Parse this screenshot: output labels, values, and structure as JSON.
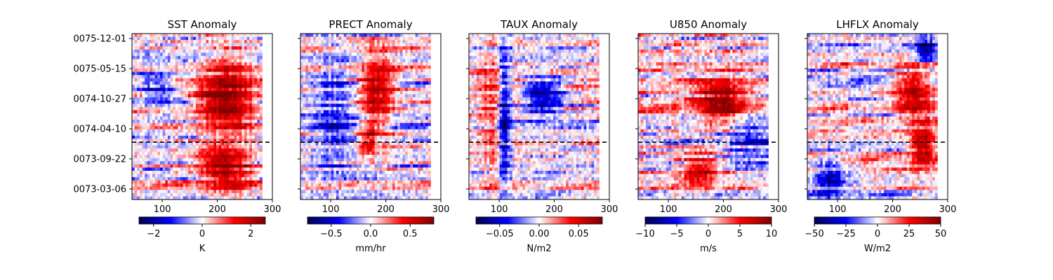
{
  "chart_data": [
    {
      "type": "heatmap",
      "title": "SST Anomaly",
      "x_ticks": [
        100,
        200,
        300
      ],
      "xlim": [
        45,
        300
      ],
      "y_ticks": [
        "0075-12-01",
        "0075-05-15",
        "0074-10-27",
        "0074-04-10",
        "0073-09-22",
        "0073-03-06"
      ],
      "colorbar": {
        "label": "K",
        "ticks": [
          "−2",
          "0",
          "2"
        ],
        "range": [
          -2.6,
          2.6
        ],
        "colormap": "seismic"
      },
      "warm_regions": [
        {
          "x": [
            160,
            275
          ],
          "y": [
            0.15,
            0.6
          ],
          "strength": 1.0
        },
        {
          "x": [
            160,
            270
          ],
          "y": [
            0.66,
            0.95
          ],
          "strength": 0.9
        }
      ],
      "cool_regions": [
        {
          "x": [
            55,
            130
          ],
          "y": [
            0.2,
            0.45
          ],
          "strength": 0.4
        }
      ],
      "dashed_line_fraction": 0.655
    },
    {
      "type": "heatmap",
      "title": "PRECT Anomaly",
      "x_ticks": [
        100,
        200,
        300
      ],
      "xlim": [
        45,
        300
      ],
      "y_ticks": [
        "0075-12-01",
        "0075-05-15",
        "0074-10-27",
        "0074-04-10",
        "0073-09-22",
        "0073-03-06"
      ],
      "colorbar": {
        "label": "mm/hr",
        "ticks": [
          "−0.5",
          "0.0",
          "0.5"
        ],
        "range": [
          -0.8,
          0.8
        ],
        "colormap": "seismic"
      },
      "warm_regions": [
        {
          "x": [
            150,
            215
          ],
          "y": [
            0.1,
            0.6
          ],
          "strength": 0.8
        },
        {
          "x": [
            150,
            185
          ],
          "y": [
            0.55,
            0.75
          ],
          "strength": 0.6
        }
      ],
      "cool_regions": [
        {
          "x": [
            55,
            150
          ],
          "y": [
            0.05,
            0.95
          ],
          "strength": 0.4
        }
      ],
      "dashed_line_fraction": 0.655
    },
    {
      "type": "heatmap",
      "title": "TAUX Anomaly",
      "x_ticks": [
        100,
        200,
        300
      ],
      "xlim": [
        45,
        300
      ],
      "y_ticks": [
        "0075-12-01",
        "0075-05-15",
        "0074-10-27",
        "0074-04-10",
        "0073-09-22",
        "0073-03-06"
      ],
      "colorbar": {
        "label": "N/m2",
        "ticks": [
          "−0.05",
          "0.00",
          "0.05"
        ],
        "range": [
          -0.08,
          0.08
        ],
        "colormap": "seismic"
      },
      "warm_regions": [
        {
          "x": [
            55,
            110
          ],
          "y": [
            0.05,
            0.95
          ],
          "strength": 0.3
        }
      ],
      "cool_regions": [
        {
          "x": [
            140,
            220
          ],
          "y": [
            0.25,
            0.5
          ],
          "strength": 0.8
        },
        {
          "x": [
            100,
            120
          ],
          "y": [
            0.0,
            1.0
          ],
          "strength": 0.9
        }
      ],
      "dashed_line_fraction": 0.655
    },
    {
      "type": "heatmap",
      "title": "U850 Anomaly",
      "x_ticks": [
        100,
        200,
        300
      ],
      "xlim": [
        45,
        300
      ],
      "y_ticks": [
        "0075-12-01",
        "0075-05-15",
        "0074-10-27",
        "0074-04-10",
        "0073-09-22",
        "0073-03-06"
      ],
      "colorbar": {
        "label": "m/s",
        "ticks": [
          "−10",
          "−5",
          "0",
          "5",
          "10"
        ],
        "range": [
          -10,
          10
        ],
        "colormap": "seismic"
      },
      "warm_regions": [
        {
          "x": [
            150,
            240
          ],
          "y": [
            0.25,
            0.55
          ],
          "strength": 0.9
        },
        {
          "x": [
            120,
            190
          ],
          "y": [
            0.7,
            0.95
          ],
          "strength": 0.7
        }
      ],
      "cool_regions": [
        {
          "x": [
            200,
            280
          ],
          "y": [
            0.5,
            0.8
          ],
          "strength": 0.4
        }
      ],
      "dashed_line_fraction": 0.655
    },
    {
      "type": "heatmap",
      "title": "LHFLX Anomaly",
      "x_ticks": [
        100,
        200,
        300
      ],
      "xlim": [
        45,
        300
      ],
      "y_ticks": [
        "0075-12-01",
        "0075-05-15",
        "0074-10-27",
        "0074-04-10",
        "0073-09-22",
        "0073-03-06"
      ],
      "colorbar": {
        "label": "W/m2",
        "ticks": [
          "−50",
          "−25",
          "0",
          "25",
          "50"
        ],
        "range": [
          -50,
          50
        ],
        "colormap": "seismic"
      },
      "warm_regions": [
        {
          "x": [
            200,
            280
          ],
          "y": [
            0.2,
            0.5
          ],
          "strength": 0.8
        },
        {
          "x": [
            230,
            280
          ],
          "y": [
            0.55,
            0.8
          ],
          "strength": 0.9
        }
      ],
      "cool_regions": [
        {
          "x": [
            55,
            120
          ],
          "y": [
            0.75,
            1.0
          ],
          "strength": 0.8
        },
        {
          "x": [
            240,
            280
          ],
          "y": [
            0.0,
            0.2
          ],
          "strength": 0.8
        }
      ],
      "dashed_line_fraction": 0.655
    }
  ]
}
